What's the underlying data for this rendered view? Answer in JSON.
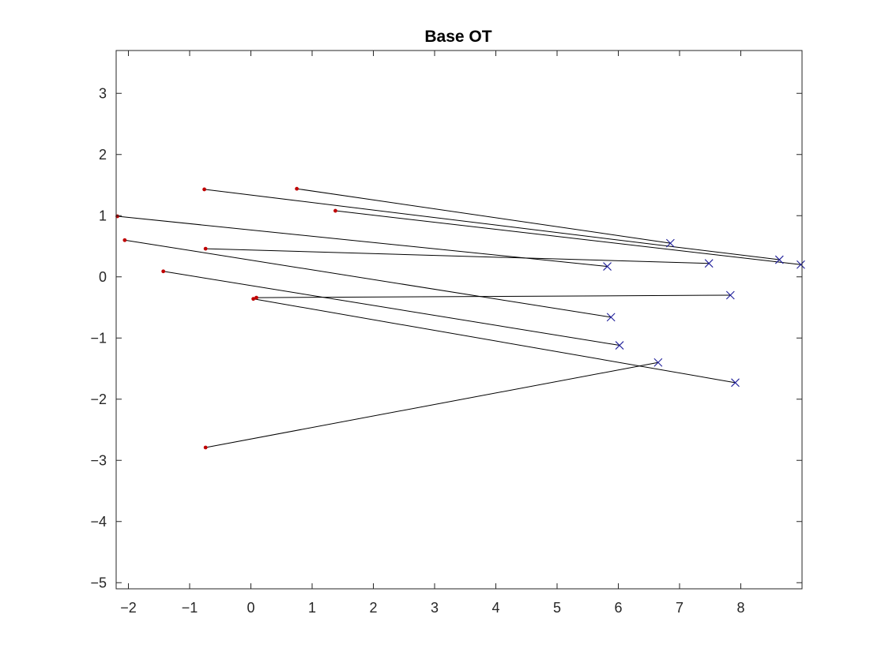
{
  "chart_data": {
    "type": "scatter",
    "title": "Base OT",
    "xlabel": "",
    "ylabel": "",
    "xlim": [
      -2.2,
      9
    ],
    "ylim": [
      -5.1,
      3.7
    ],
    "xticks": [
      -2,
      -1,
      0,
      1,
      2,
      3,
      4,
      5,
      6,
      7,
      8
    ],
    "yticks": [
      -5,
      -4,
      -3,
      -2,
      -1,
      0,
      1,
      2,
      3
    ],
    "grid": false,
    "legend": false,
    "colors": {
      "source": "#c00000",
      "target": "#1f1f9a",
      "link": "#000000"
    },
    "source_points": [
      {
        "x": 0.75,
        "y": 1.44
      },
      {
        "x": -0.76,
        "y": 1.43
      },
      {
        "x": 1.38,
        "y": 1.08
      },
      {
        "x": -2.18,
        "y": 0.99
      },
      {
        "x": -2.06,
        "y": 0.6
      },
      {
        "x": -0.74,
        "y": 0.46
      },
      {
        "x": -1.43,
        "y": 0.09
      },
      {
        "x": 0.09,
        "y": -0.34
      },
      {
        "x": 0.04,
        "y": -0.36
      },
      {
        "x": -0.74,
        "y": -2.79
      }
    ],
    "target_points": [
      {
        "x": 6.85,
        "y": 0.55
      },
      {
        "x": 8.63,
        "y": 0.28
      },
      {
        "x": 8.98,
        "y": 0.2
      },
      {
        "x": 5.82,
        "y": 0.17
      },
      {
        "x": 5.88,
        "y": -0.66
      },
      {
        "x": 7.48,
        "y": 0.22
      },
      {
        "x": 6.02,
        "y": -1.12
      },
      {
        "x": 7.83,
        "y": -0.3
      },
      {
        "x": 7.91,
        "y": -1.73
      },
      {
        "x": 6.65,
        "y": -1.4
      }
    ],
    "links": [
      [
        0,
        0
      ],
      [
        1,
        1
      ],
      [
        2,
        2
      ],
      [
        3,
        3
      ],
      [
        4,
        4
      ],
      [
        5,
        5
      ],
      [
        6,
        6
      ],
      [
        7,
        7
      ],
      [
        8,
        8
      ],
      [
        9,
        9
      ]
    ]
  }
}
